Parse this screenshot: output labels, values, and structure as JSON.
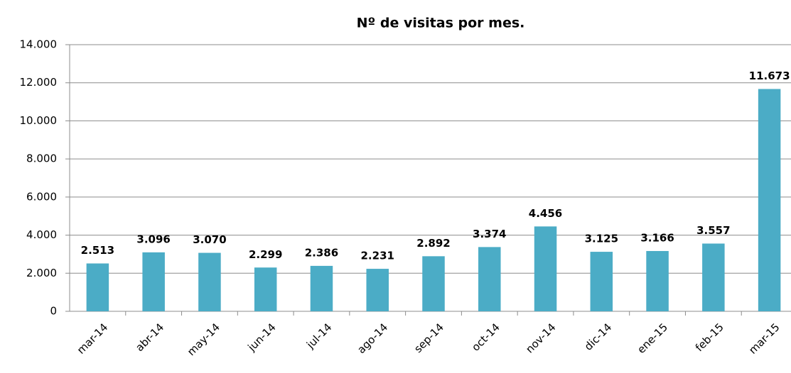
{
  "chart_data": {
    "type": "bar",
    "title": "Nº de visitas  por mes.",
    "categories": [
      "mar-14",
      "abr-14",
      "may-14",
      "jun-14",
      "jul-14",
      "ago-14",
      "sep-14",
      "oct-14",
      "nov-14",
      "dic-14",
      "ene-15",
      "feb-15",
      "mar-15"
    ],
    "values": [
      2513,
      3096,
      3070,
      2299,
      2386,
      2231,
      2892,
      3374,
      4456,
      3125,
      3166,
      3557,
      11673
    ],
    "value_labels": [
      "2.513",
      "3.096",
      "3.070",
      "2.299",
      "2.386",
      "2.231",
      "2.892",
      "3.374",
      "4.456",
      "3.125",
      "3.166",
      "3.557",
      "11.673"
    ],
    "color": "#4bacc6",
    "ylim": [
      0,
      14000
    ],
    "yticks": [
      0,
      {
        "value": 2000,
        "label": "2.000"
      },
      {
        "value": 4000,
        "label": "4.000"
      },
      {
        "value": 6000,
        "label": "6.000"
      },
      {
        "value": 8000,
        "label": "8.000"
      },
      {
        "value": 10000,
        "label": "10.000"
      },
      {
        "value": 12000,
        "label": "12.000"
      },
      {
        "value": 14000,
        "label": "14.000"
      }
    ],
    "grid": true
  }
}
